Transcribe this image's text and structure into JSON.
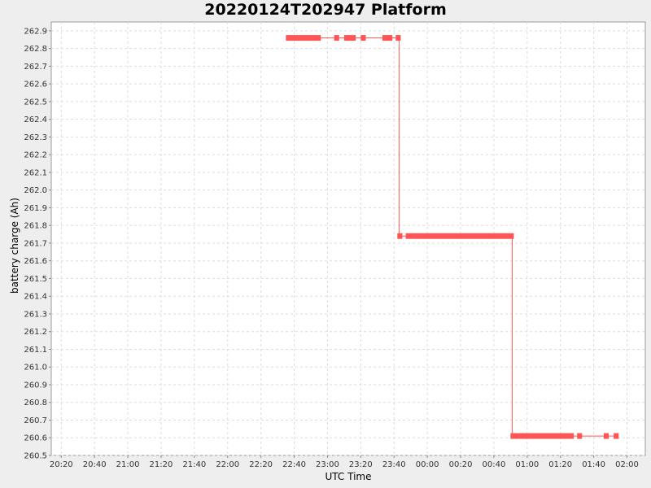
{
  "chart_data": {
    "type": "line",
    "title": "20220124T202947 Platform",
    "xlabel": "UTC Time",
    "ylabel": "battery charge (Ah)",
    "x_ticks": [
      "20:20",
      "20:40",
      "21:00",
      "21:20",
      "21:40",
      "22:00",
      "22:20",
      "22:40",
      "23:00",
      "23:20",
      "23:40",
      "00:00",
      "00:20",
      "00:40",
      "01:00",
      "01:20",
      "01:40",
      "02:00"
    ],
    "y_ticks": [
      "260.5",
      "260.6",
      "260.7",
      "260.8",
      "260.9",
      "261.0",
      "261.1",
      "261.2",
      "261.3",
      "261.4",
      "261.5",
      "261.6",
      "261.7",
      "261.8",
      "261.9",
      "262.0",
      "262.1",
      "262.2",
      "262.3",
      "262.4",
      "262.5",
      "262.6",
      "262.7",
      "262.8",
      "262.9"
    ],
    "xlim": [
      "20:14",
      "02:11"
    ],
    "ylim": [
      260.5,
      262.95
    ],
    "grid": true,
    "series_color": "#ff5555",
    "series": [
      {
        "segments": [
          {
            "start": "22:35",
            "end": "22:56",
            "y": 262.86
          },
          {
            "start": "23:04",
            "end": "23:07",
            "y": 262.86
          },
          {
            "start": "23:10",
            "end": "23:17",
            "y": 262.86
          },
          {
            "start": "23:20",
            "end": "23:23",
            "y": 262.86
          },
          {
            "start": "23:33",
            "end": "23:39",
            "y": 262.86
          },
          {
            "start": "23:41",
            "end": "23:44",
            "y": 262.86
          },
          {
            "start": "23:42",
            "end": "23:45",
            "y": 261.74
          },
          {
            "start": "23:47",
            "end": "00:52",
            "y": 261.74
          },
          {
            "start": "00:50",
            "end": "01:28",
            "y": 260.61
          },
          {
            "start": "01:30",
            "end": "01:33",
            "y": 260.61
          },
          {
            "start": "01:46",
            "end": "01:49",
            "y": 260.61
          },
          {
            "start": "01:52",
            "end": "01:55",
            "y": 260.61
          }
        ],
        "steps": [
          {
            "x": "23:43",
            "from": 262.86,
            "to": 261.74
          },
          {
            "x": "00:51",
            "from": 261.74,
            "to": 260.61
          }
        ]
      }
    ]
  }
}
